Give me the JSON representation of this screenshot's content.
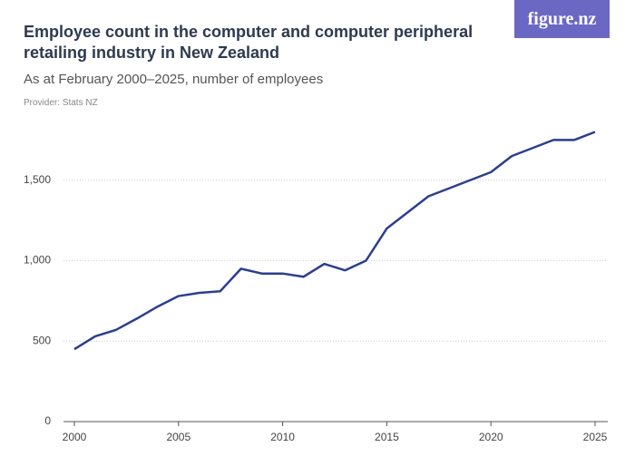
{
  "chart_data": {
    "type": "line",
    "title": "Employee count in the computer and computer peripheral retailing industry in New Zealand",
    "subtitle": "As at February 2000–2025, number of employees",
    "provider": "Provider: Stats NZ",
    "logo": "figure.nz",
    "x": [
      2000,
      2001,
      2002,
      2003,
      2004,
      2005,
      2006,
      2007,
      2008,
      2009,
      2010,
      2011,
      2012,
      2013,
      2014,
      2015,
      2016,
      2017,
      2018,
      2019,
      2020,
      2021,
      2022,
      2023,
      2024,
      2025
    ],
    "series": [
      {
        "name": "Employees",
        "color": "#2b3f8f",
        "values": [
          450,
          530,
          570,
          640,
          715,
          780,
          800,
          810,
          950,
          920,
          920,
          900,
          980,
          940,
          1000,
          1200,
          1300,
          1400,
          1450,
          1500,
          1550,
          1650,
          1700,
          1750,
          1750,
          1800
        ]
      }
    ],
    "xlim": [
      2000,
      2025
    ],
    "xticks": [
      2000,
      2005,
      2010,
      2015,
      2020,
      2025
    ],
    "ylim": [
      0,
      2000
    ],
    "yticks": [
      0,
      500,
      {
        "value": 1000,
        "label": "1,000"
      },
      {
        "value": 1500,
        "label": "1,500"
      }
    ],
    "grid": true
  }
}
